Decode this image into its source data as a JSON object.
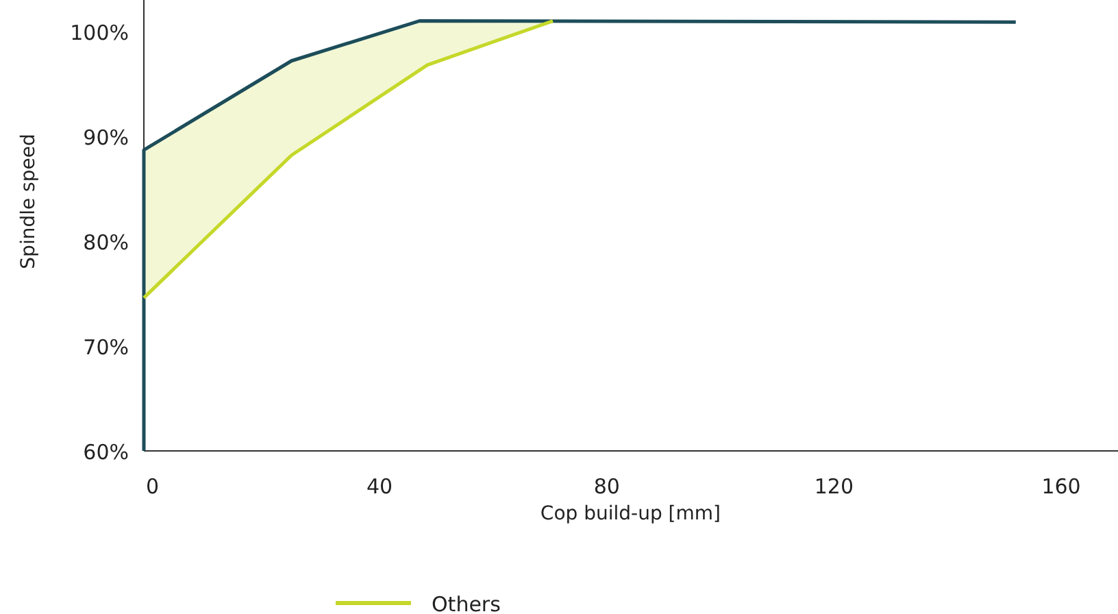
{
  "chart_data": {
    "type": "line",
    "xlabel": "Cop build-up [mm]",
    "ylabel": "Spindle speed",
    "xlim": [
      -1.5,
      170
    ],
    "xticks": [
      0,
      40,
      80,
      120,
      160
    ],
    "ylim": [
      60,
      103
    ],
    "yticks": [
      {
        "value": 60,
        "label": "60%"
      },
      {
        "value": 70,
        "label": "70%"
      },
      {
        "value": 80,
        "label": "80%"
      },
      {
        "value": 90,
        "label": "90%"
      },
      {
        "value": 100,
        "label": "100%"
      }
    ],
    "grid": false,
    "legend": "bottom left",
    "marker": "none",
    "line_style": "solid",
    "series": [
      {
        "color": "#1d4d5a",
        "x": [
          -1.5,
          -1.5,
          24.5,
          47,
          152
        ],
        "values": [
          60,
          88.7,
          97.2,
          101,
          100.9
        ]
      },
      {
        "name": "Others",
        "color": "#c5d82a",
        "x": [
          -1.5,
          24.5,
          48.4,
          70.5
        ],
        "values": [
          74.6,
          88.2,
          96.8,
          101
        ],
        "lower": [
          74.6,
          88.2,
          96.8,
          101
        ],
        "upper": [
          88.7,
          97.2,
          101,
          101
        ]
      }
    ]
  }
}
